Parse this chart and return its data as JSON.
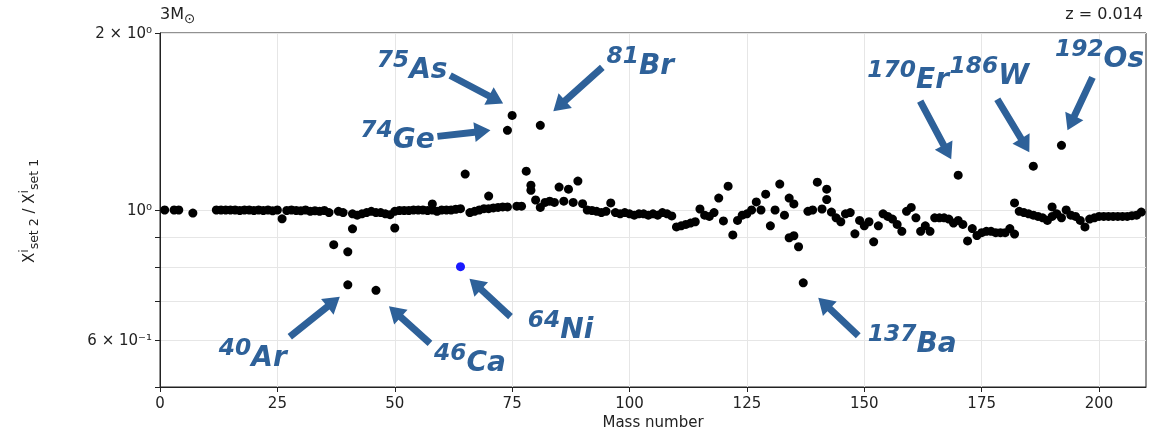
{
  "chart_data": {
    "type": "scatter",
    "title": "3M$_{⊙}$",
    "subtitle": "z = 0.014",
    "xlabel": "Mass number",
    "ylabel": "X$^{i}$$_{set 2}$ / X$^{i}$$_{set 1}$",
    "xlim": [
      0,
      210
    ],
    "xticks": [
      0,
      25,
      50,
      75,
      100,
      125,
      150,
      175,
      200
    ],
    "ylim": [
      0.5,
      2
    ],
    "log": "y",
    "yticks": [
      {
        "value": 0.5,
        "label": null
      },
      {
        "value": 0.6,
        "label": "6 × 10⁻¹"
      },
      {
        "value": 0.7,
        "label": null
      },
      {
        "value": 0.8,
        "label": null
      },
      {
        "value": 0.9,
        "label": null
      },
      {
        "value": 1,
        "label": "10⁰"
      },
      {
        "value": 2,
        "label": "2 × 10⁰"
      }
    ],
    "grid": true,
    "marker": "circle",
    "series": [
      {
        "color": "#000000",
        "x": [
          1,
          3,
          4,
          7,
          12,
          13,
          14,
          15,
          16,
          17,
          18,
          19,
          20,
          21,
          22,
          23,
          24,
          25,
          26,
          27,
          28,
          29,
          30,
          31,
          32,
          33,
          34,
          35,
          36,
          37,
          38,
          39,
          40,
          40,
          41,
          41,
          42,
          43,
          44,
          45,
          46,
          46,
          47,
          48,
          49,
          50,
          50,
          51,
          52,
          53,
          54,
          55,
          56,
          57,
          58,
          58,
          59,
          60,
          61,
          62,
          63,
          64,
          65,
          66,
          67,
          68,
          69,
          70,
          70,
          71,
          72,
          73,
          74,
          74,
          75,
          76,
          77,
          78,
          79,
          79,
          80,
          81,
          81,
          82,
          83,
          84,
          85,
          86,
          87,
          88,
          89,
          90,
          91,
          92,
          93,
          94,
          95,
          96,
          97,
          98,
          99,
          100,
          101,
          102,
          103,
          104,
          105,
          106,
          107,
          108,
          109,
          110,
          111,
          112,
          113,
          114,
          115,
          116,
          117,
          118,
          119,
          120,
          121,
          122,
          123,
          124,
          125,
          126,
          127,
          128,
          129,
          130,
          131,
          132,
          133,
          134,
          134,
          135,
          135,
          136,
          137,
          138,
          139,
          140,
          141,
          142,
          142,
          143,
          144,
          145,
          146,
          147,
          148,
          149,
          150,
          151,
          152,
          153,
          154,
          155,
          156,
          157,
          158,
          159,
          160,
          161,
          162,
          163,
          164,
          165,
          166,
          167,
          168,
          169,
          170,
          170,
          171,
          172,
          173,
          174,
          175,
          176,
          177,
          178,
          179,
          180,
          181,
          182,
          182,
          183,
          184,
          185,
          186,
          186,
          187,
          188,
          189,
          190,
          190,
          191,
          192,
          192,
          193,
          194,
          195,
          196,
          197,
          198,
          199,
          200,
          201,
          202,
          203,
          204,
          205,
          206,
          207,
          208,
          209
        ],
        "values": [
          1.0,
          1.0,
          1.0,
          0.988,
          1.0,
          1.0,
          1.0,
          1.0,
          1.0,
          0.998,
          1.0,
          1.0,
          0.998,
          1.0,
          0.998,
          1.0,
          0.997,
          1.0,
          0.966,
          0.998,
          1.0,
          0.998,
          0.997,
          1.0,
          0.995,
          0.997,
          0.995,
          0.998,
          0.99,
          0.873,
          0.995,
          0.99,
          0.849,
          0.746,
          0.929,
          0.985,
          0.98,
          0.985,
          0.99,
          0.995,
          0.73,
          0.99,
          0.99,
          0.985,
          0.982,
          0.932,
          0.995,
          0.998,
          0.998,
          0.998,
          1.0,
          1.0,
          1.0,
          0.998,
          1.024,
          1.0,
          0.995,
          1.0,
          1.0,
          1.0,
          1.003,
          1.005,
          1.151,
          0.99,
          0.995,
          1.0,
          1.005,
          1.056,
          1.005,
          1.008,
          1.01,
          1.012,
          1.366,
          1.012,
          1.448,
          1.015,
          1.015,
          1.164,
          1.102,
          1.08,
          1.04,
          1.393,
          1.01,
          1.03,
          1.035,
          1.03,
          1.094,
          1.035,
          1.085,
          1.03,
          1.12,
          1.025,
          1.0,
          0.998,
          0.995,
          0.99,
          0.995,
          1.028,
          0.99,
          0.985,
          0.99,
          0.985,
          0.98,
          0.985,
          0.985,
          0.98,
          0.985,
          0.98,
          0.99,
          0.985,
          0.977,
          0.936,
          0.94,
          0.945,
          0.95,
          0.955,
          1.004,
          0.98,
          0.975,
          0.99,
          1.048,
          0.958,
          1.098,
          0.907,
          0.96,
          0.98,
          0.985,
          1.0,
          1.032,
          1.0,
          1.064,
          0.94,
          1.0,
          1.107,
          0.98,
          1.048,
          0.897,
          1.024,
          0.904,
          0.866,
          0.752,
          0.995,
          1.0,
          1.115,
          1.004,
          1.085,
          1.042,
          0.992,
          0.97,
          0.955,
          0.985,
          0.99,
          0.911,
          0.96,
          0.94,
          0.955,
          0.883,
          0.94,
          0.985,
          0.975,
          0.965,
          0.945,
          0.92,
          0.995,
          1.01,
          0.97,
          0.92,
          0.94,
          0.92,
          0.97,
          0.97,
          0.97,
          0.965,
          0.95,
          1.146,
          0.96,
          0.945,
          0.886,
          0.93,
          0.905,
          0.915,
          0.92,
          0.92,
          0.915,
          0.915,
          0.915,
          0.93,
          1.028,
          0.91,
          0.995,
          0.99,
          0.985,
          1.187,
          0.98,
          0.975,
          0.97,
          0.96,
          1.012,
          0.975,
          0.985,
          1.288,
          0.97,
          1.0,
          0.98,
          0.975,
          0.96,
          0.936,
          0.965,
          0.97,
          0.975,
          0.975,
          0.975,
          0.975,
          0.975,
          0.975,
          0.975,
          0.978,
          0.98,
          0.992
        ]
      },
      {
        "color": "#1a1aff",
        "x": [
          64
        ],
        "values": [
          0.801
        ]
      }
    ],
    "annotations": [
      {
        "text": "$^{75}$As",
        "x": 75,
        "y": 1.448
      },
      {
        "text": "$^{74}$Ge",
        "x": 74,
        "y": 1.366
      },
      {
        "text": "$^{81}$Br",
        "x": 81,
        "y": 1.393
      },
      {
        "text": "$^{40}$Ar",
        "x": 40,
        "y": 0.746
      },
      {
        "text": "$^{46}$Ca",
        "x": 46,
        "y": 0.73
      },
      {
        "text": "$^{64}$Ni",
        "x": 64,
        "y": 0.801
      },
      {
        "text": "$^{137}$Ba",
        "x": 137,
        "y": 0.752
      },
      {
        "text": "$^{170}$Er",
        "x": 170,
        "y": 1.146
      },
      {
        "text": "$^{186}$W",
        "x": 186,
        "y": 1.187
      },
      {
        "text": "$^{192}$Os",
        "x": 192,
        "y": 1.288
      }
    ]
  }
}
